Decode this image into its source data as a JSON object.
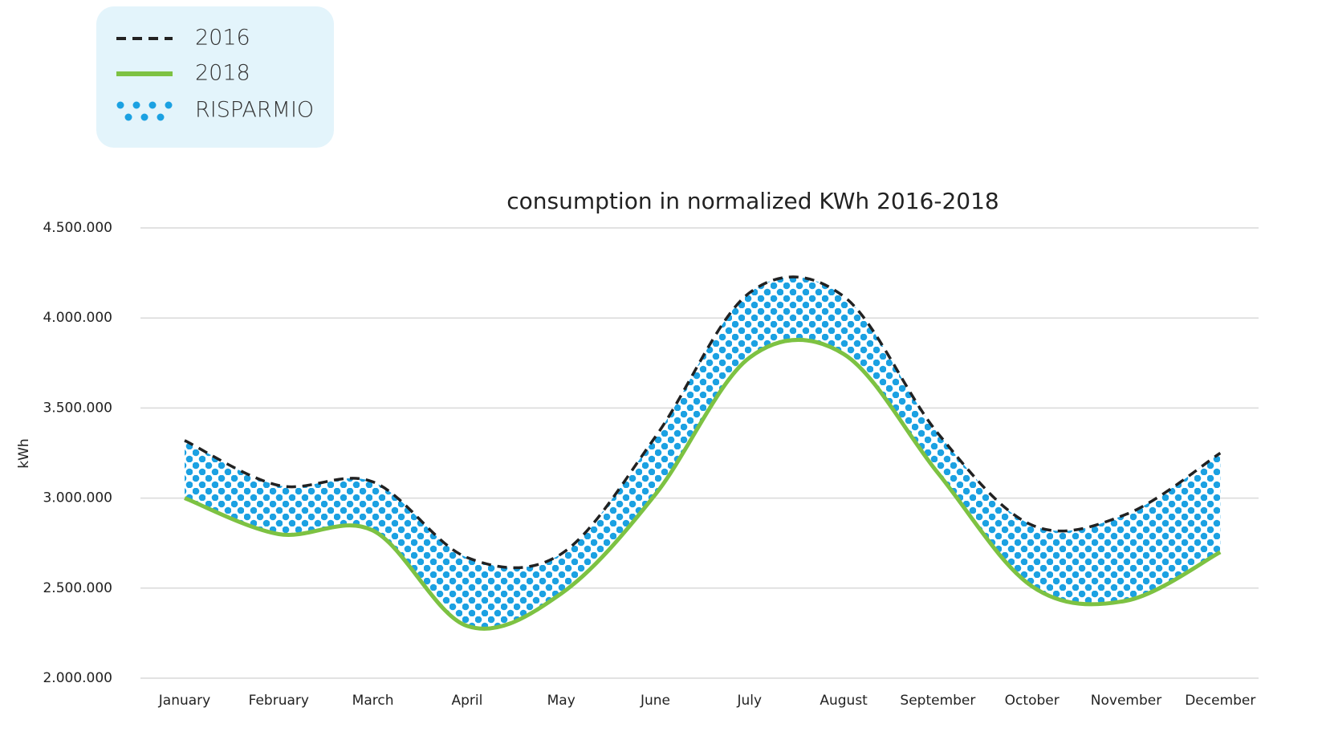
{
  "chart_data": {
    "type": "line",
    "title": "consumption in normalized KWh 2016-2018",
    "ylabel": "kWh",
    "categories": [
      "January",
      "February",
      "March",
      "April",
      "May",
      "June",
      "July",
      "August",
      "September",
      "October",
      "November",
      "December"
    ],
    "series": [
      {
        "name": "2016",
        "color": "#222222",
        "dash": true,
        "values": [
          3320000,
          3070000,
          3090000,
          2670000,
          2690000,
          3340000,
          4140000,
          4120000,
          3360000,
          2850000,
          2910000,
          3250000
        ]
      },
      {
        "name": "2018",
        "color": "#7dc242",
        "dash": false,
        "values": [
          3000000,
          2800000,
          2820000,
          2290000,
          2470000,
          3020000,
          3780000,
          3800000,
          3140000,
          2510000,
          2430000,
          2700000
        ]
      }
    ],
    "band": {
      "name": "RISPARMIO",
      "color": "#1ba1e2"
    },
    "ylim": [
      2000000,
      4500000
    ],
    "yticks": [
      {
        "value": 2000000,
        "label": "2.000.000"
      },
      {
        "value": 2500000,
        "label": "2.500.000"
      },
      {
        "value": 3000000,
        "label": "3.000.000"
      },
      {
        "value": 3500000,
        "label": "3.500.000"
      },
      {
        "value": 4000000,
        "label": "4.000.000"
      },
      {
        "value": 4500000,
        "label": "4.500.000"
      }
    ],
    "grid": true
  }
}
